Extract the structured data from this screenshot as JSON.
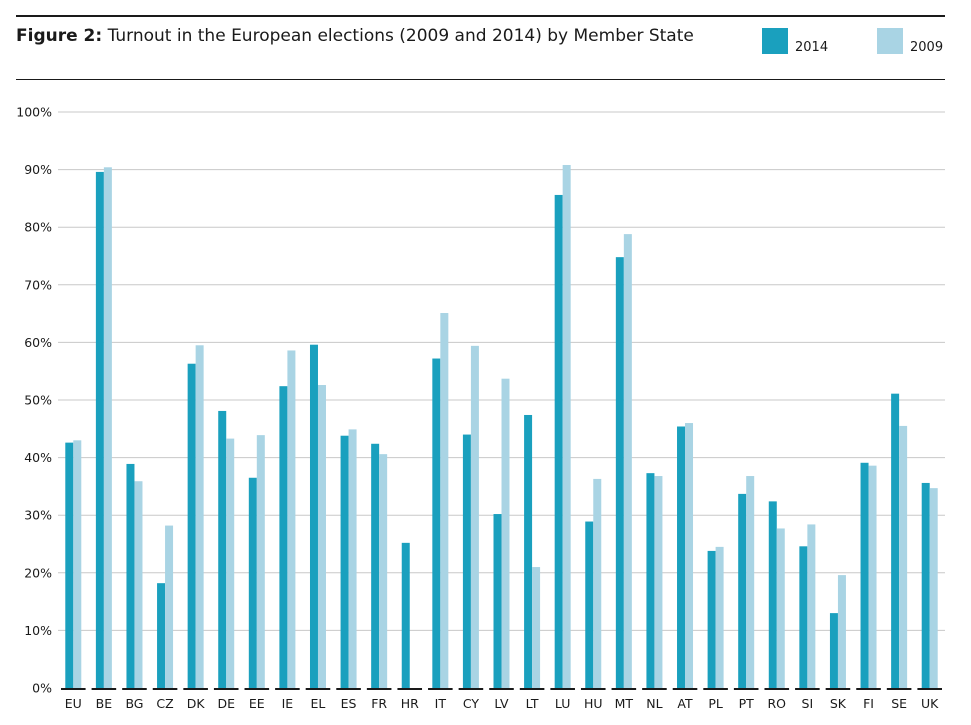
{
  "title": {
    "prefix": "Figure 2:",
    "text": "Turnout in the European elections (2009 and 2014) by Member State"
  },
  "colors": {
    "s2014": "#1aa0be",
    "s2009": "#a9d4e4",
    "grid": "#c8c8c8",
    "axis": "#1a1a1a"
  },
  "chart_data": {
    "type": "bar",
    "title": "Turnout in the European elections (2009 and 2014) by Member State",
    "categories": [
      "EU",
      "BE",
      "BG",
      "CZ",
      "DK",
      "DE",
      "EE",
      "IE",
      "EL",
      "ES",
      "FR",
      "HR",
      "IT",
      "CY",
      "LV",
      "LT",
      "LU",
      "HU",
      "MT",
      "NL",
      "AT",
      "PL",
      "PT",
      "RO",
      "SI",
      "SK",
      "FI",
      "SE",
      "UK"
    ],
    "series": [
      {
        "name": "2014",
        "values": [
          42.6,
          89.6,
          38.9,
          18.2,
          56.3,
          48.1,
          36.5,
          52.4,
          59.6,
          43.8,
          42.4,
          25.2,
          57.2,
          44.0,
          30.2,
          47.4,
          85.6,
          28.9,
          74.8,
          37.3,
          45.4,
          23.8,
          33.7,
          32.4,
          24.6,
          13.0,
          39.1,
          51.1,
          35.6
        ]
      },
      {
        "name": "2009",
        "values": [
          43.0,
          90.4,
          35.9,
          28.2,
          59.5,
          43.3,
          43.9,
          58.6,
          52.6,
          44.9,
          40.6,
          null,
          65.1,
          59.4,
          53.7,
          21.0,
          90.8,
          36.3,
          78.8,
          36.8,
          46.0,
          24.5,
          36.8,
          27.7,
          28.4,
          19.6,
          38.6,
          45.5,
          34.7
        ]
      }
    ],
    "y_tick_labels": [
      "0%",
      "10%",
      "20%",
      "30%",
      "40%",
      "50%",
      "60%",
      "70%",
      "80%",
      "90%",
      "100%"
    ],
    "ylim": [
      0,
      100
    ],
    "grid": true,
    "legend": "top-right"
  }
}
